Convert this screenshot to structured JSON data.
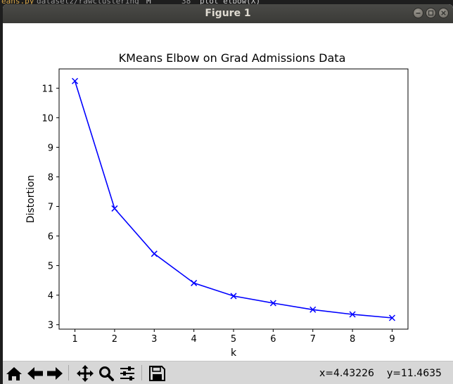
{
  "window": {
    "title": "Figure 1"
  },
  "background": {
    "editor_fragment_1": "eans.py",
    "editor_fragment_2": "datasetz/rawclustering",
    "editor_fragment_3": "M",
    "editor_fragment_4": "38",
    "editor_fragment_5": "plot elbow(X)"
  },
  "toolbar": {
    "buttons": [
      {
        "name": "home-button",
        "icon": "home-icon"
      },
      {
        "name": "back-button",
        "icon": "arrow-left-icon"
      },
      {
        "name": "forward-button",
        "icon": "arrow-right-icon"
      },
      {
        "name": "pan-button",
        "icon": "move-icon"
      },
      {
        "name": "zoom-button",
        "icon": "magnifier-icon"
      },
      {
        "name": "subplots-button",
        "icon": "sliders-icon"
      },
      {
        "name": "save-button",
        "icon": "floppy-disk-icon"
      }
    ],
    "coord_x": "x=4.43226",
    "coord_y": "y=11.4635"
  },
  "colors": {
    "line": "#0000ff",
    "titlebar": "#3c3b37",
    "toolbar": "#d7d7d7"
  },
  "chart_data": {
    "type": "line",
    "title": "KMeans Elbow on Grad Admissions Data",
    "xlabel": "k",
    "ylabel": "Distortion",
    "x": [
      1,
      2,
      3,
      4,
      5,
      6,
      7,
      8,
      9
    ],
    "y": [
      11.24,
      6.93,
      5.4,
      4.41,
      3.97,
      3.73,
      3.51,
      3.35,
      3.23
    ],
    "marker": "x",
    "xticks": [
      "1",
      "2",
      "3",
      "4",
      "5",
      "6",
      "7",
      "8",
      "9"
    ],
    "yticks": [
      "3",
      "4",
      "5",
      "6",
      "7",
      "8",
      "9",
      "10",
      "11"
    ],
    "xlim": [
      0.6,
      9.4
    ],
    "ylim": [
      2.85,
      11.65
    ],
    "grid": false,
    "legend": false
  }
}
